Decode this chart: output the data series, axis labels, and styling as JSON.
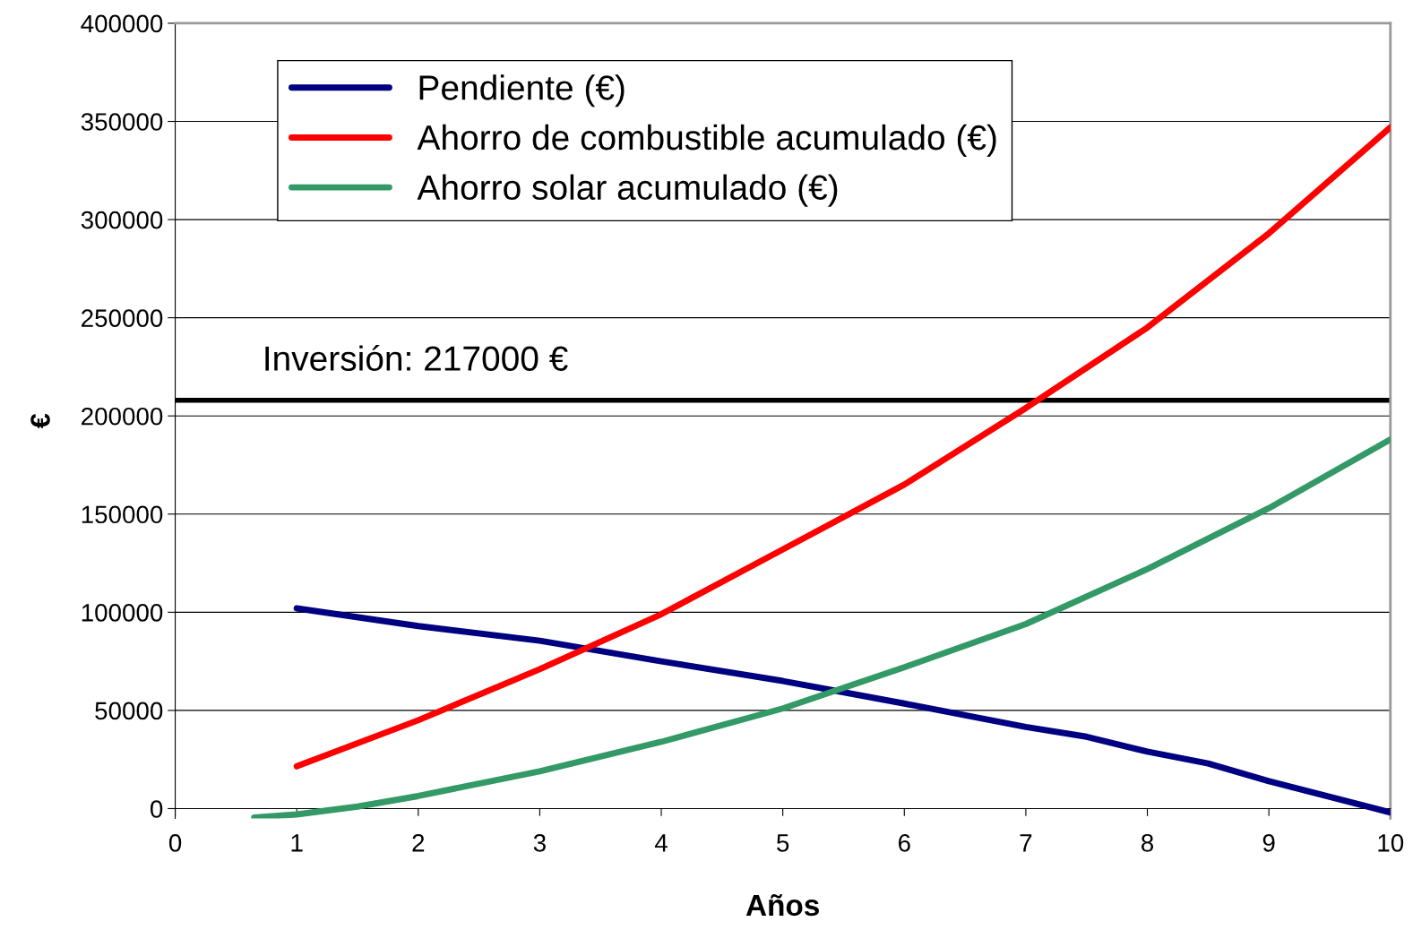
{
  "chart_data": {
    "type": "line",
    "xlabel": "Años",
    "ylabel": "€",
    "xlim": [
      0,
      10
    ],
    "xticks": [
      0,
      1,
      2,
      3,
      4,
      5,
      6,
      7,
      8,
      9,
      10
    ],
    "ylim": [
      -5000,
      400000
    ],
    "yticks": [
      0,
      50000,
      100000,
      150000,
      200000,
      250000,
      300000,
      350000,
      400000
    ],
    "grid": "y",
    "legend": "top left",
    "line_style": "solid",
    "marker": "none",
    "series": [
      {
        "name": "Pendiente (€)",
        "color": "#000080",
        "x": [
          1,
          2,
          3,
          4,
          5,
          6,
          7,
          7.5,
          8,
          8.5,
          9,
          10
        ],
        "values": [
          102000,
          93000,
          85500,
          75000,
          65000,
          53500,
          41600,
          36600,
          29000,
          23000,
          14000,
          -2000
        ]
      },
      {
        "name": "Ahorro de combustible acumulado (€)",
        "color": "#ff0000",
        "x": [
          1,
          2,
          3,
          4,
          5,
          6,
          7,
          8,
          9,
          10
        ],
        "values": [
          21500,
          45000,
          71000,
          99000,
          132000,
          165000,
          204000,
          245000,
          293000,
          347000
        ]
      },
      {
        "name": "Ahorro solar acumulado (€)",
        "color": "#339966",
        "x": [
          0.65,
          1,
          1.5,
          2,
          3,
          4,
          5,
          6,
          7,
          8,
          9,
          10
        ],
        "values": [
          -4500,
          -3000,
          1000,
          6400,
          19000,
          34000,
          51000,
          72000,
          94000,
          122000,
          153000,
          188000
        ]
      }
    ],
    "ref_lines": [
      {
        "axis": "y",
        "value": 208000,
        "color": "#000000",
        "line_style": "solid"
      }
    ],
    "annotations": [
      "Inversión: 217000 €"
    ]
  }
}
